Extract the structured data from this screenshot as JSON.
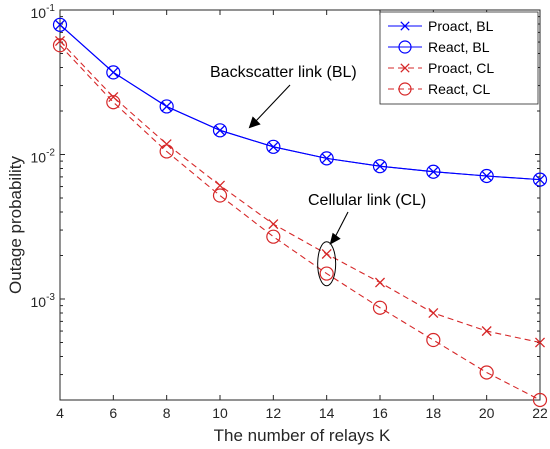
{
  "chart_data": {
    "type": "line",
    "title": "",
    "xlabel": "The number of relays K",
    "ylabel": "Outage probability",
    "xlim": [
      4,
      22
    ],
    "ylim": [
      0.0002,
      0.1
    ],
    "y_scale": "log",
    "grid": false,
    "legend_position": "top-right",
    "x_ticks": [
      4,
      6,
      8,
      10,
      12,
      14,
      16,
      18,
      20,
      22
    ],
    "y_ticks": [
      {
        "value": 0.1,
        "base": "10",
        "exp": "-1"
      },
      {
        "value": 0.01,
        "base": "10",
        "exp": "-2"
      },
      {
        "value": 0.001,
        "base": "10",
        "exp": "-3"
      }
    ],
    "x": [
      4,
      6,
      8,
      10,
      12,
      14,
      16,
      18,
      20,
      22
    ],
    "series": [
      {
        "name": "Proact, BL",
        "color": "#0000ff",
        "line": "solid",
        "marker": "x",
        "markers_only": false,
        "values": [
          0.079,
          0.037,
          0.0215,
          0.0147,
          0.0113,
          0.0094,
          0.0083,
          0.0076,
          0.0071,
          0.0067
        ]
      },
      {
        "name": "React, BL",
        "color": "#0000ff",
        "line": "solid",
        "marker": "o",
        "markers_only": false,
        "values": [
          0.079,
          0.037,
          0.0215,
          0.0147,
          0.0113,
          0.0094,
          0.0083,
          0.0076,
          0.0071,
          0.0067
        ]
      },
      {
        "name": "Proact, CL",
        "color": "#d62728",
        "line": "dashed",
        "marker": "x",
        "markers_only": false,
        "values": [
          0.061,
          0.025,
          0.0118,
          0.0061,
          0.0033,
          0.00205,
          0.0013,
          0.0008,
          0.0006,
          0.0005
        ]
      },
      {
        "name": "React, CL",
        "color": "#d62728",
        "line": "dashed",
        "marker": "o",
        "markers_only": false,
        "values": [
          0.057,
          0.023,
          0.0105,
          0.0052,
          0.0027,
          0.0015,
          0.00087,
          0.00052,
          0.00031,
          0.0002
        ]
      }
    ],
    "annotations": [
      {
        "text": "Backscatter link (BL)",
        "points_to": {
          "x": 11,
          "y": 0.0147
        }
      },
      {
        "text": "Cellular link (CL)",
        "points_to": {
          "x": 14,
          "y": 0.0021
        }
      }
    ]
  }
}
